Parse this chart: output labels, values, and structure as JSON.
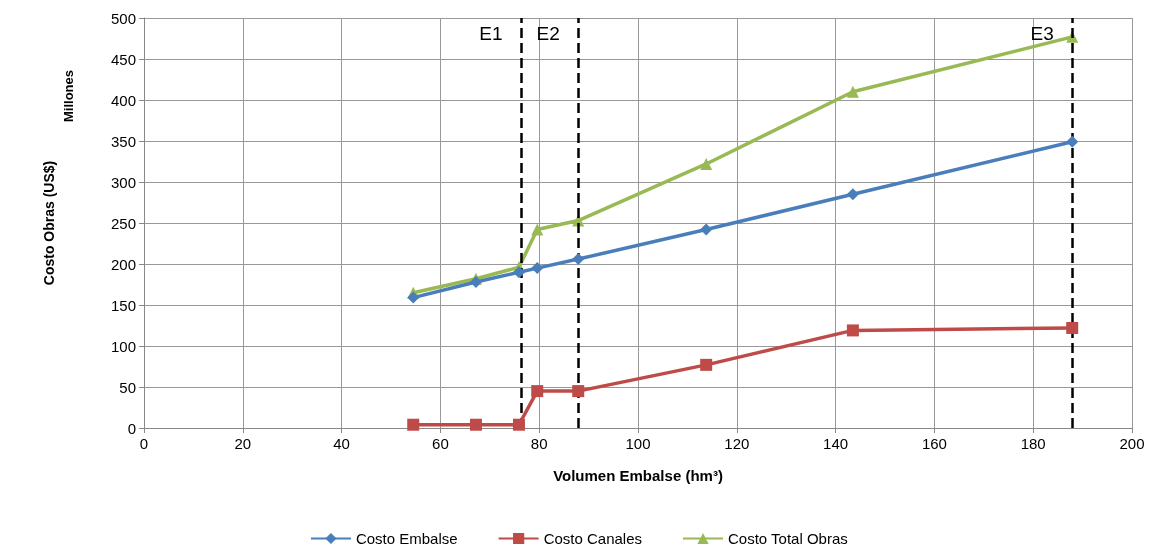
{
  "chart_data": {
    "type": "line",
    "xlabel": "Volumen Embalse (hm³)",
    "ylabel": "Costo Obras (US$)",
    "annotations": [
      "Millones"
    ],
    "x": [
      54.5,
      67.2,
      75.9,
      79.6,
      87.9,
      113.8,
      143.5,
      187.9
    ],
    "series": [
      {
        "name": "Costo Embalse",
        "color": "#4a7ebb",
        "marker": "diamond",
        "values": [
          159,
          178,
          190,
          195,
          206,
          242,
          285,
          349
        ]
      },
      {
        "name": "Costo Canales",
        "color": "#be4b48",
        "marker": "square",
        "values": [
          4,
          4,
          4,
          45,
          45,
          77,
          119,
          122
        ]
      },
      {
        "name": "Costo Total Obras",
        "color": "#98b954",
        "marker": "triangle",
        "values": [
          165,
          182,
          196,
          242,
          253,
          322,
          410,
          477
        ]
      }
    ],
    "xlim": [
      0,
      200
    ],
    "xticks": [
      0,
      20,
      40,
      60,
      80,
      100,
      120,
      140,
      160,
      180,
      200
    ],
    "ylim": [
      0,
      500
    ],
    "yticks": [
      0,
      50,
      100,
      150,
      200,
      250,
      300,
      350,
      400,
      450,
      500
    ],
    "ref_lines": [
      {
        "axis": "x",
        "value": 76.3,
        "label": "E1",
        "line_style": "dashed",
        "color": "#000000"
      },
      {
        "axis": "x",
        "value": 87.9,
        "label": "E2",
        "line_style": "dashed",
        "color": "#000000"
      },
      {
        "axis": "x",
        "value": 187.9,
        "label": "E3",
        "line_style": "dashed",
        "color": "#000000"
      }
    ],
    "grid": true,
    "legend": "bottom",
    "line_style": "solid"
  }
}
